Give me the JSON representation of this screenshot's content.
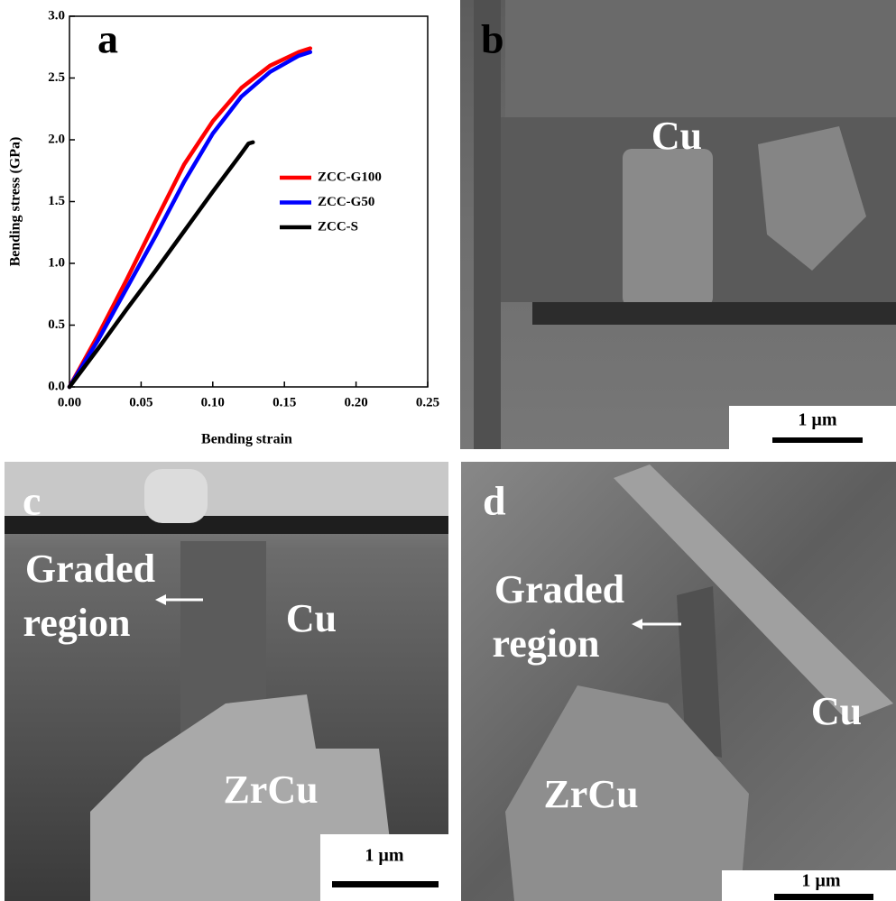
{
  "chart_data": {
    "type": "line",
    "panel_label": "a",
    "x_label": "Bending strain",
    "y_label": "Bending stress (GPa)",
    "xlim": [
      0,
      0.25
    ],
    "ylim": [
      0,
      3
    ],
    "xticks": [
      {
        "value": 0,
        "label": "0.00"
      },
      0.05,
      {
        "value": 0.1,
        "label": "0.10"
      },
      0.15,
      {
        "value": 0.2,
        "label": "0.20"
      },
      0.25
    ],
    "yticks": [
      {
        "value": 0,
        "label": "0.0"
      },
      0.5,
      {
        "value": 1,
        "label": "1.0"
      },
      1.5,
      {
        "value": 2,
        "label": "2.0"
      },
      2.5,
      {
        "value": 3,
        "label": "3.0"
      }
    ],
    "series": [
      {
        "name": "ZCC-G100",
        "color": "#ff0000",
        "x": [
          0,
          0.02,
          0.04,
          0.06,
          0.08,
          0.1,
          0.12,
          0.14,
          0.16,
          0.168
        ],
        "values": [
          0,
          0.42,
          0.87,
          1.34,
          1.8,
          2.15,
          2.42,
          2.6,
          2.71,
          2.74
        ]
      },
      {
        "name": "ZCC-G50",
        "color": "#0000ff",
        "x": [
          0,
          0.02,
          0.04,
          0.06,
          0.08,
          0.1,
          0.12,
          0.14,
          0.16,
          0.168
        ],
        "values": [
          0,
          0.38,
          0.8,
          1.22,
          1.66,
          2.05,
          2.35,
          2.55,
          2.68,
          2.71
        ]
      },
      {
        "name": "ZCC-S",
        "color": "#000000",
        "x": [
          0,
          0.02,
          0.04,
          0.06,
          0.08,
          0.1,
          0.12,
          0.125,
          0.128
        ],
        "values": [
          0,
          0.31,
          0.63,
          0.94,
          1.26,
          1.58,
          1.89,
          1.97,
          1.98
        ]
      }
    ]
  },
  "panels": [
    {
      "label": "b",
      "annotations": [
        "Cu"
      ],
      "scale_bar": "1 µm"
    },
    {
      "label": "c",
      "annotations": [
        "Graded",
        "region",
        "Cu",
        "ZrCu"
      ],
      "scale_bar": "1 µm"
    },
    {
      "label": "d",
      "annotations": [
        "Graded",
        "region",
        "Cu",
        "ZrCu"
      ],
      "scale_bar": "1 µm"
    }
  ]
}
